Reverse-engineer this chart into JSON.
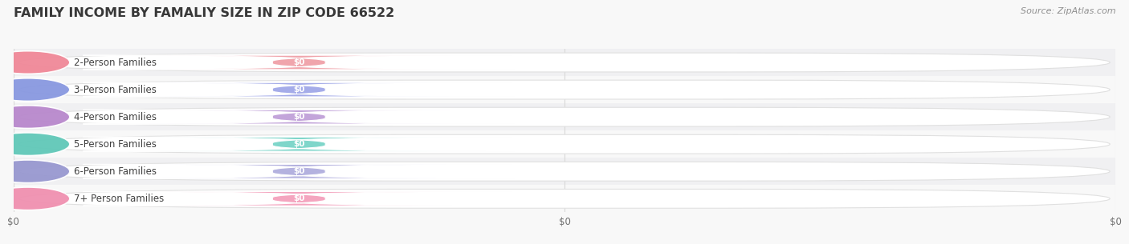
{
  "title": "FAMILY INCOME BY FAMALIY SIZE IN ZIP CODE 66522",
  "source": "Source: ZipAtlas.com",
  "categories": [
    "2-Person Families",
    "3-Person Families",
    "4-Person Families",
    "5-Person Families",
    "6-Person Families",
    "7+ Person Families"
  ],
  "values": [
    0,
    0,
    0,
    0,
    0,
    0
  ],
  "bar_colors": [
    "#f0a0a8",
    "#a0a8e8",
    "#c0a0d8",
    "#78d4c8",
    "#b0aede",
    "#f4a0bc"
  ],
  "circle_colors": [
    "#f08898",
    "#8898e0",
    "#b888cc",
    "#60c8b8",
    "#9898d0",
    "#f090b0"
  ],
  "bg_color": "#f8f8f8",
  "bar_bg_color": "#ffffff",
  "row_alt_color": "#f0f0f2",
  "title_color": "#383838",
  "source_color": "#909090",
  "title_fontsize": 11.5,
  "source_fontsize": 8,
  "label_fontsize": 8.5,
  "value_label": "$0",
  "xtick_labels": [
    "$0",
    "$0",
    "$0"
  ],
  "xtick_positions": [
    0.0,
    0.5,
    1.0
  ],
  "grid_color": "#d8d8d8"
}
